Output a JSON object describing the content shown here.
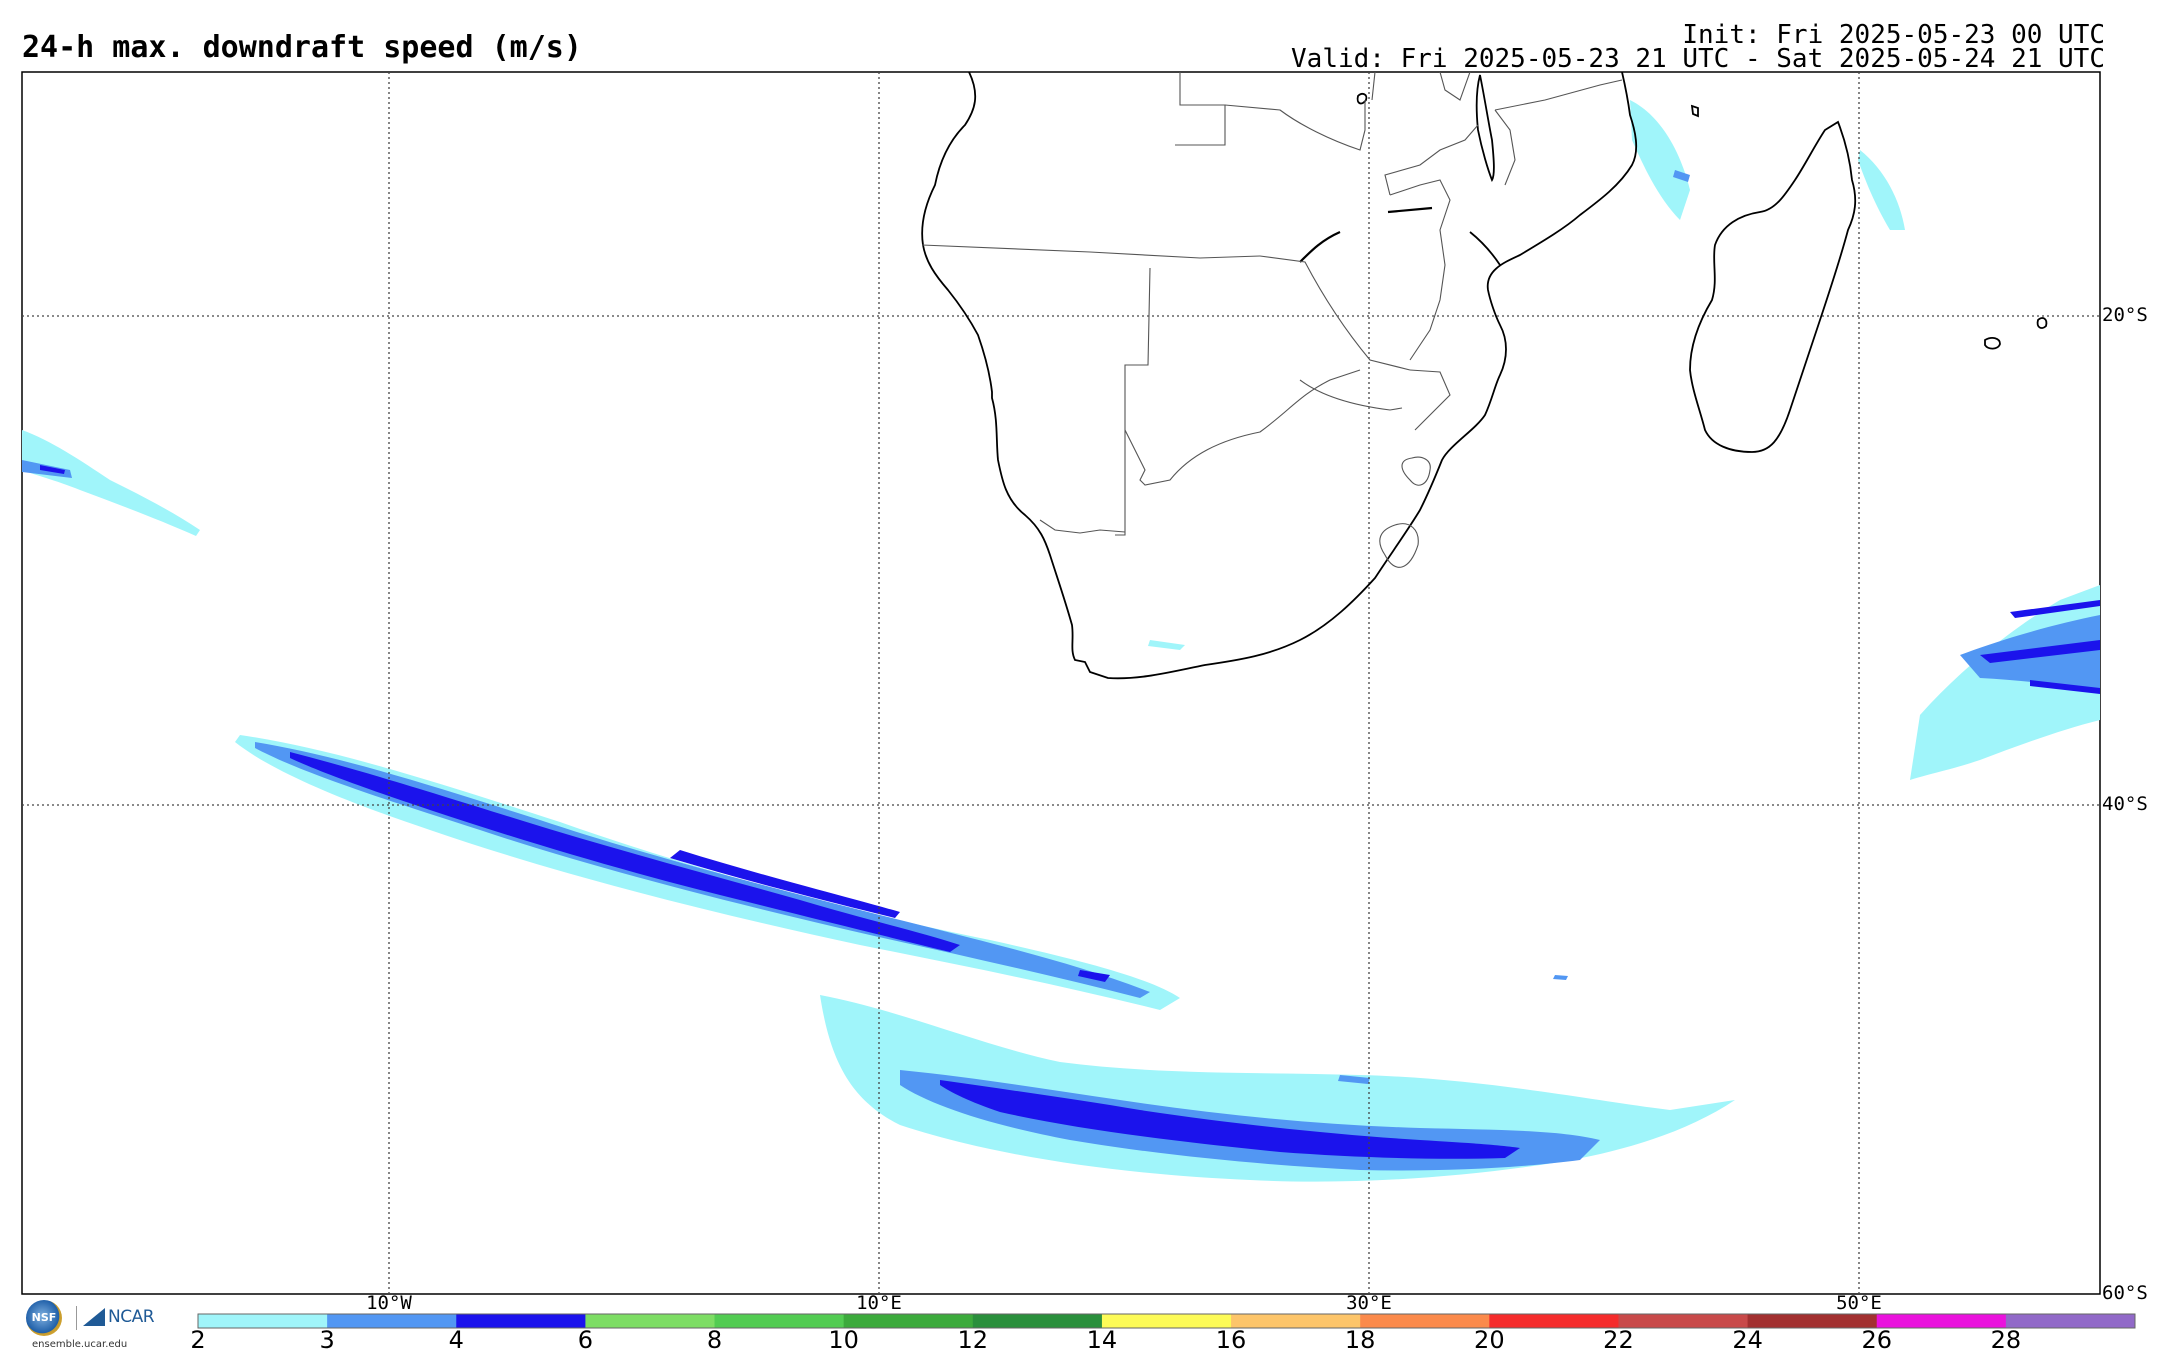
{
  "title": "24-h max. downdraft speed (m/s)",
  "init": "Init: Fri 2025-05-23 00 UTC",
  "valid": "Valid: Fri 2025-05-23 21 UTC - Sat 2025-05-24 21 UTC",
  "map": {
    "lat_labels": [
      "20°S",
      "40°S",
      "60°S"
    ],
    "lon_labels": [
      "10°W",
      "10°E",
      "30°E",
      "50°E"
    ],
    "region": "Southern Africa and South Atlantic / Indian Ocean"
  },
  "colorbar": {
    "labels": [
      "2",
      "3",
      "4",
      "6",
      "8",
      "10",
      "12",
      "14",
      "16",
      "18",
      "20",
      "22",
      "24",
      "26",
      "28"
    ],
    "colors": [
      "#a0f5fa",
      "#5297f3",
      "#1b13ec",
      "#7ddd64",
      "#52cc52",
      "#3caa3c",
      "#2a8f3c",
      "#fdfb57",
      "#fdc56a",
      "#fb8a4b",
      "#f52b2b",
      "#c84949",
      "#a23030",
      "#ea12dd",
      "#9169c8"
    ]
  },
  "logos": {
    "nsf": "NSF",
    "ncar": "NCAR",
    "url": "ensemble.ucar.edu"
  }
}
